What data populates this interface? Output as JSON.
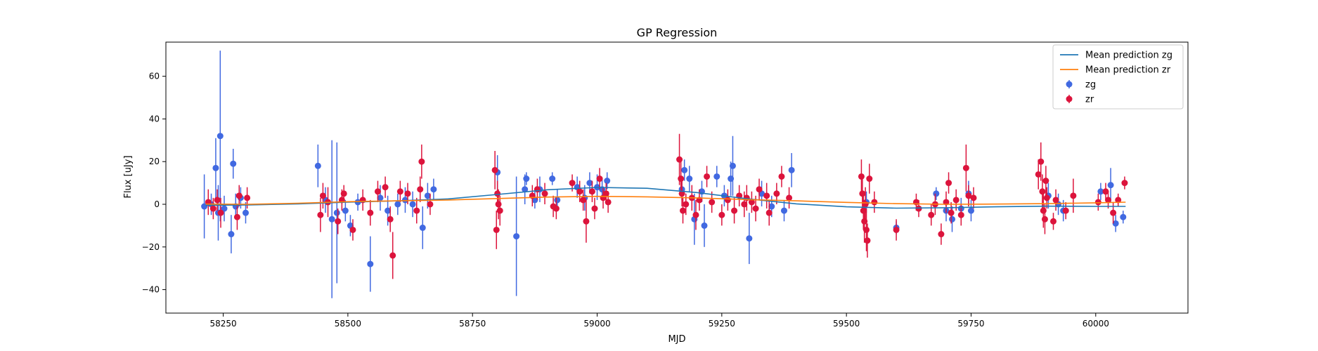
{
  "chart_data": {
    "type": "scatter",
    "title": "GP Regression",
    "xlabel": "MJD",
    "ylabel": "Flux [uJy]",
    "xlim": [
      58135,
      60185
    ],
    "ylim": [
      -51,
      76
    ],
    "xticks": [
      58250,
      58500,
      58750,
      59000,
      59250,
      59500,
      59750,
      60000
    ],
    "yticks": [
      -40,
      -20,
      0,
      20,
      40,
      60
    ],
    "legend_position": "top-right",
    "legend": [
      {
        "label": "Mean prediction zg",
        "kind": "line",
        "color": "#1f77b4"
      },
      {
        "label": "Mean prediction zr",
        "kind": "line",
        "color": "#ff7f0e"
      },
      {
        "label": "zg",
        "kind": "errorbar",
        "color": "#4169e1"
      },
      {
        "label": "zr",
        "kind": "errorbar",
        "color": "#dc143c"
      }
    ],
    "mean_prediction_zg": {
      "color": "#1f77b4",
      "x": [
        58215,
        58300,
        58400,
        58500,
        58600,
        58700,
        58800,
        58900,
        59000,
        59100,
        59200,
        59300,
        59400,
        59500,
        59600,
        59700,
        59800,
        59900,
        60000,
        60060
      ],
      "y": [
        -0.5,
        -0.3,
        0.2,
        1.0,
        1.6,
        2.5,
        4.6,
        6.8,
        7.9,
        7.5,
        5.5,
        2.6,
        0.2,
        -1.2,
        -1.8,
        -1.6,
        -1.2,
        -0.9,
        -1.0,
        -1.0
      ]
    },
    "mean_prediction_zr": {
      "color": "#ff7f0e",
      "x": [
        58215,
        58300,
        58400,
        58500,
        58600,
        58700,
        58800,
        58900,
        59000,
        59100,
        59200,
        59300,
        59400,
        59500,
        59600,
        59700,
        59800,
        59900,
        60000,
        60060
      ],
      "y": [
        0.1,
        0.0,
        0.5,
        1.2,
        1.6,
        2.0,
        2.7,
        3.4,
        3.7,
        3.5,
        3.0,
        2.2,
        1.6,
        0.9,
        0.3,
        0.0,
        0.1,
        0.3,
        0.7,
        1.0
      ]
    },
    "series": [
      {
        "name": "zg",
        "color": "#4169e1",
        "points": [
          {
            "x": 58212,
            "y": -1,
            "err": 15
          },
          {
            "x": 58226,
            "y": 0,
            "err": 5
          },
          {
            "x": 58235,
            "y": 17,
            "err": 14
          },
          {
            "x": 58240,
            "y": -4,
            "err": 13
          },
          {
            "x": 58244,
            "y": 32,
            "err": 40
          },
          {
            "x": 58252,
            "y": -2,
            "err": 6
          },
          {
            "x": 58266,
            "y": -14,
            "err": 9
          },
          {
            "x": 58270,
            "y": 19,
            "err": 7
          },
          {
            "x": 58275,
            "y": -1,
            "err": 6
          },
          {
            "x": 58285,
            "y": 3,
            "err": 5
          },
          {
            "x": 58295,
            "y": -4,
            "err": 5
          },
          {
            "x": 58440,
            "y": 18,
            "err": 10
          },
          {
            "x": 58455,
            "y": 2,
            "err": 6
          },
          {
            "x": 58468,
            "y": -7,
            "err": 37
          },
          {
            "x": 58478,
            "y": -4,
            "err": 33
          },
          {
            "x": 58495,
            "y": -3,
            "err": 5
          },
          {
            "x": 58505,
            "y": -10,
            "err": 5
          },
          {
            "x": 58520,
            "y": 1,
            "err": 4
          },
          {
            "x": 58545,
            "y": -28,
            "err": 13
          },
          {
            "x": 58565,
            "y": 3,
            "err": 6
          },
          {
            "x": 58580,
            "y": -3,
            "err": 7
          },
          {
            "x": 58600,
            "y": 0,
            "err": 5
          },
          {
            "x": 58615,
            "y": 2,
            "err": 6
          },
          {
            "x": 58630,
            "y": 0,
            "err": 6
          },
          {
            "x": 58650,
            "y": -11,
            "err": 10
          },
          {
            "x": 58660,
            "y": 4,
            "err": 6
          },
          {
            "x": 58672,
            "y": 7,
            "err": 5
          },
          {
            "x": 58800,
            "y": 15,
            "err": 8
          },
          {
            "x": 58838,
            "y": -15,
            "err": 28
          },
          {
            "x": 58855,
            "y": 7,
            "err": 7
          },
          {
            "x": 58858,
            "y": 12,
            "err": 3
          },
          {
            "x": 58875,
            "y": 2,
            "err": 4
          },
          {
            "x": 58885,
            "y": 7,
            "err": 6
          },
          {
            "x": 58910,
            "y": 12,
            "err": 3
          },
          {
            "x": 58920,
            "y": 2,
            "err": 5
          },
          {
            "x": 58960,
            "y": 8,
            "err": 5
          },
          {
            "x": 58975,
            "y": 3,
            "err": 6
          },
          {
            "x": 58985,
            "y": 10,
            "err": 5
          },
          {
            "x": 59000,
            "y": 8,
            "err": 6
          },
          {
            "x": 59010,
            "y": 7,
            "err": 5
          },
          {
            "x": 59020,
            "y": 11,
            "err": 4
          },
          {
            "x": 59170,
            "y": 7,
            "err": 5
          },
          {
            "x": 59175,
            "y": 16,
            "err": 5
          },
          {
            "x": 59185,
            "y": 12,
            "err": 6
          },
          {
            "x": 59195,
            "y": -7,
            "err": 12
          },
          {
            "x": 59210,
            "y": 6,
            "err": 5
          },
          {
            "x": 59215,
            "y": -10,
            "err": 10
          },
          {
            "x": 59240,
            "y": 13,
            "err": 5
          },
          {
            "x": 59255,
            "y": 4,
            "err": 5
          },
          {
            "x": 59268,
            "y": 12,
            "err": 8
          },
          {
            "x": 59272,
            "y": 18,
            "err": 14
          },
          {
            "x": 59305,
            "y": -16,
            "err": 12
          },
          {
            "x": 59330,
            "y": 5,
            "err": 6
          },
          {
            "x": 59350,
            "y": -1,
            "err": 5
          },
          {
            "x": 59375,
            "y": -3,
            "err": 5
          },
          {
            "x": 59390,
            "y": 16,
            "err": 8
          },
          {
            "x": 59540,
            "y": 1,
            "err": 5
          },
          {
            "x": 59600,
            "y": -11,
            "err": 3
          },
          {
            "x": 59680,
            "y": 5,
            "err": 3
          },
          {
            "x": 59700,
            "y": -3,
            "err": 5
          },
          {
            "x": 59712,
            "y": -7,
            "err": 6
          },
          {
            "x": 59730,
            "y": -2,
            "err": 5
          },
          {
            "x": 59745,
            "y": 5,
            "err": 6
          },
          {
            "x": 59750,
            "y": -3,
            "err": 5
          },
          {
            "x": 59905,
            "y": 4,
            "err": 6
          },
          {
            "x": 59925,
            "y": 0,
            "err": 5
          },
          {
            "x": 59935,
            "y": -3,
            "err": 5
          },
          {
            "x": 60010,
            "y": 6,
            "err": 4
          },
          {
            "x": 60030,
            "y": 9,
            "err": 8
          },
          {
            "x": 60040,
            "y": -9,
            "err": 4
          },
          {
            "x": 60055,
            "y": -6,
            "err": 3
          }
        ]
      },
      {
        "name": "zr",
        "color": "#dc143c",
        "points": [
          {
            "x": 58220,
            "y": 1,
            "err": 6
          },
          {
            "x": 58230,
            "y": -2,
            "err": 5
          },
          {
            "x": 58238,
            "y": 2,
            "err": 5
          },
          {
            "x": 58245,
            "y": -4,
            "err": 7
          },
          {
            "x": 58278,
            "y": -6,
            "err": 6
          },
          {
            "x": 58282,
            "y": 4,
            "err": 5
          },
          {
            "x": 58298,
            "y": 3,
            "err": 5
          },
          {
            "x": 58445,
            "y": -5,
            "err": 8
          },
          {
            "x": 58450,
            "y": 4,
            "err": 6
          },
          {
            "x": 58460,
            "y": 1,
            "err": 7
          },
          {
            "x": 58480,
            "y": -8,
            "err": 6
          },
          {
            "x": 58488,
            "y": 2,
            "err": 5
          },
          {
            "x": 58492,
            "y": 5,
            "err": 4
          },
          {
            "x": 58510,
            "y": -12,
            "err": 5
          },
          {
            "x": 58530,
            "y": 2,
            "err": 5
          },
          {
            "x": 58545,
            "y": -4,
            "err": 6
          },
          {
            "x": 58560,
            "y": 6,
            "err": 5
          },
          {
            "x": 58575,
            "y": 8,
            "err": 5
          },
          {
            "x": 58585,
            "y": -7,
            "err": 6
          },
          {
            "x": 58590,
            "y": -24,
            "err": 11
          },
          {
            "x": 58605,
            "y": 6,
            "err": 5
          },
          {
            "x": 58620,
            "y": 5,
            "err": 5
          },
          {
            "x": 58638,
            "y": -3,
            "err": 6
          },
          {
            "x": 58645,
            "y": 7,
            "err": 6
          },
          {
            "x": 58648,
            "y": 20,
            "err": 8
          },
          {
            "x": 58665,
            "y": 0,
            "err": 5
          },
          {
            "x": 58795,
            "y": 16,
            "err": 9
          },
          {
            "x": 58798,
            "y": -12,
            "err": 9
          },
          {
            "x": 58800,
            "y": 5,
            "err": 6
          },
          {
            "x": 58802,
            "y": 0,
            "err": 7
          },
          {
            "x": 58805,
            "y": -3,
            "err": 7
          },
          {
            "x": 58870,
            "y": 4,
            "err": 5
          },
          {
            "x": 58880,
            "y": 7,
            "err": 5
          },
          {
            "x": 58895,
            "y": 5,
            "err": 5
          },
          {
            "x": 58912,
            "y": -1,
            "err": 5
          },
          {
            "x": 58918,
            "y": -2,
            "err": 5
          },
          {
            "x": 58950,
            "y": 10,
            "err": 4
          },
          {
            "x": 58965,
            "y": 6,
            "err": 5
          },
          {
            "x": 58972,
            "y": 2,
            "err": 5
          },
          {
            "x": 58978,
            "y": -8,
            "err": 10
          },
          {
            "x": 58990,
            "y": 6,
            "err": 5
          },
          {
            "x": 58995,
            "y": -2,
            "err": 5
          },
          {
            "x": 59005,
            "y": 12,
            "err": 5
          },
          {
            "x": 59012,
            "y": 3,
            "err": 5
          },
          {
            "x": 59018,
            "y": 5,
            "err": 5
          },
          {
            "x": 59022,
            "y": 1,
            "err": 5
          },
          {
            "x": 59165,
            "y": 21,
            "err": 12
          },
          {
            "x": 59168,
            "y": 12,
            "err": 8
          },
          {
            "x": 59170,
            "y": 5,
            "err": 6
          },
          {
            "x": 59172,
            "y": -3,
            "err": 6
          },
          {
            "x": 59178,
            "y": 0,
            "err": 5
          },
          {
            "x": 59190,
            "y": 3,
            "err": 6
          },
          {
            "x": 59198,
            "y": -5,
            "err": 7
          },
          {
            "x": 59205,
            "y": 2,
            "err": 5
          },
          {
            "x": 59220,
            "y": 13,
            "err": 5
          },
          {
            "x": 59230,
            "y": 1,
            "err": 5
          },
          {
            "x": 59250,
            "y": -5,
            "err": 5
          },
          {
            "x": 59262,
            "y": 2,
            "err": 5
          },
          {
            "x": 59275,
            "y": -3,
            "err": 6
          },
          {
            "x": 59285,
            "y": 4,
            "err": 5
          },
          {
            "x": 59295,
            "y": 0,
            "err": 6
          },
          {
            "x": 59300,
            "y": 3,
            "err": 6
          },
          {
            "x": 59310,
            "y": 1,
            "err": 5
          },
          {
            "x": 59318,
            "y": -2,
            "err": 6
          },
          {
            "x": 59325,
            "y": 7,
            "err": 5
          },
          {
            "x": 59340,
            "y": 4,
            "err": 6
          },
          {
            "x": 59345,
            "y": -4,
            "err": 6
          },
          {
            "x": 59360,
            "y": 5,
            "err": 5
          },
          {
            "x": 59370,
            "y": 13,
            "err": 5
          },
          {
            "x": 59385,
            "y": 3,
            "err": 5
          },
          {
            "x": 59530,
            "y": 13,
            "err": 8
          },
          {
            "x": 59532,
            "y": 5,
            "err": 7
          },
          {
            "x": 59534,
            "y": -3,
            "err": 9
          },
          {
            "x": 59536,
            "y": -8,
            "err": 10
          },
          {
            "x": 59538,
            "y": 0,
            "err": 8
          },
          {
            "x": 59540,
            "y": -12,
            "err": 10
          },
          {
            "x": 59542,
            "y": -17,
            "err": 8
          },
          {
            "x": 59546,
            "y": 12,
            "err": 7
          },
          {
            "x": 59556,
            "y": 1,
            "err": 5
          },
          {
            "x": 59600,
            "y": -12,
            "err": 5
          },
          {
            "x": 59640,
            "y": 1,
            "err": 4
          },
          {
            "x": 59645,
            "y": -2,
            "err": 4
          },
          {
            "x": 59670,
            "y": -5,
            "err": 5
          },
          {
            "x": 59678,
            "y": 0,
            "err": 5
          },
          {
            "x": 59690,
            "y": -14,
            "err": 5
          },
          {
            "x": 59700,
            "y": 1,
            "err": 5
          },
          {
            "x": 59705,
            "y": 10,
            "err": 5
          },
          {
            "x": 59710,
            "y": -4,
            "err": 5
          },
          {
            "x": 59720,
            "y": 2,
            "err": 5
          },
          {
            "x": 59730,
            "y": -5,
            "err": 5
          },
          {
            "x": 59740,
            "y": 17,
            "err": 11
          },
          {
            "x": 59745,
            "y": 4,
            "err": 5
          },
          {
            "x": 59755,
            "y": 3,
            "err": 5
          },
          {
            "x": 59885,
            "y": 14,
            "err": 7
          },
          {
            "x": 59890,
            "y": 20,
            "err": 9
          },
          {
            "x": 59893,
            "y": 6,
            "err": 8
          },
          {
            "x": 59895,
            "y": -3,
            "err": 8
          },
          {
            "x": 59898,
            "y": -7,
            "err": 7
          },
          {
            "x": 59900,
            "y": 11,
            "err": 7
          },
          {
            "x": 59902,
            "y": 3,
            "err": 5
          },
          {
            "x": 59915,
            "y": -8,
            "err": 4
          },
          {
            "x": 59920,
            "y": 2,
            "err": 5
          },
          {
            "x": 59940,
            "y": -3,
            "err": 4
          },
          {
            "x": 59955,
            "y": 4,
            "err": 8
          },
          {
            "x": 60005,
            "y": 1,
            "err": 4
          },
          {
            "x": 60020,
            "y": 6,
            "err": 4
          },
          {
            "x": 60025,
            "y": 2,
            "err": 4
          },
          {
            "x": 60035,
            "y": -4,
            "err": 5
          },
          {
            "x": 60045,
            "y": 2,
            "err": 3
          },
          {
            "x": 60058,
            "y": 10,
            "err": 3
          }
        ]
      }
    ]
  }
}
